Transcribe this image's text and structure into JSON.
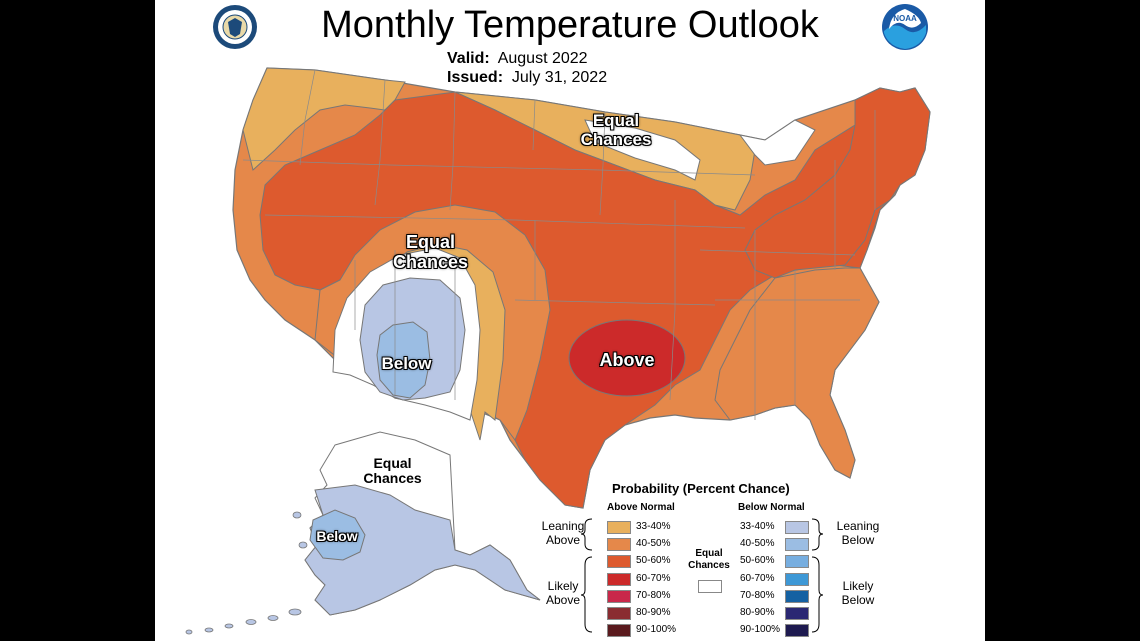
{
  "title": "Monthly Temperature Outlook",
  "valid_label": "Valid:",
  "valid_value": "August 2022",
  "issued_label": "Issued:",
  "issued_value": "July 31, 2022",
  "logos": {
    "left": "doc-seal-icon",
    "right": "noaa-logo-icon"
  },
  "map_labels": {
    "equal_chances_north": [
      "Equal",
      "Chances"
    ],
    "equal_chances_west": [
      "Equal",
      "Chances"
    ],
    "below_sw": "Below",
    "above_south": "Above",
    "equal_chances_alaska": [
      "Equal",
      "Chances"
    ],
    "below_alaska": "Below"
  },
  "legend": {
    "title": "Probability (Percent Chance)",
    "above_header": "Above Normal",
    "below_header": "Below Normal",
    "equal_chances_label": [
      "Equal",
      "Chances"
    ],
    "leaning_above": [
      "Leaning",
      "Above"
    ],
    "likely_above": [
      "Likely",
      "Above"
    ],
    "leaning_below": [
      "Leaning",
      "Below"
    ],
    "likely_below": [
      "Likely",
      "Below"
    ],
    "above_bins": [
      {
        "label": "33-40%",
        "color": "#e8b05d"
      },
      {
        "label": "40-50%",
        "color": "#e5884a"
      },
      {
        "label": "50-60%",
        "color": "#dd5a2e"
      },
      {
        "label": "60-70%",
        "color": "#cc2a2a"
      },
      {
        "label": "70-80%",
        "color": "#c9284a"
      },
      {
        "label": "80-90%",
        "color": "#8a2c31"
      },
      {
        "label": "90-100%",
        "color": "#5a1a1e"
      }
    ],
    "below_bins": [
      {
        "label": "33-40%",
        "color": "#b8c6e4"
      },
      {
        "label": "40-50%",
        "color": "#9bbde3"
      },
      {
        "label": "50-60%",
        "color": "#77aee0"
      },
      {
        "label": "60-70%",
        "color": "#3d98d6"
      },
      {
        "label": "70-80%",
        "color": "#1561a2"
      },
      {
        "label": "80-90%",
        "color": "#2b2873"
      },
      {
        "label": "90-100%",
        "color": "#1e1a50"
      }
    ]
  }
}
